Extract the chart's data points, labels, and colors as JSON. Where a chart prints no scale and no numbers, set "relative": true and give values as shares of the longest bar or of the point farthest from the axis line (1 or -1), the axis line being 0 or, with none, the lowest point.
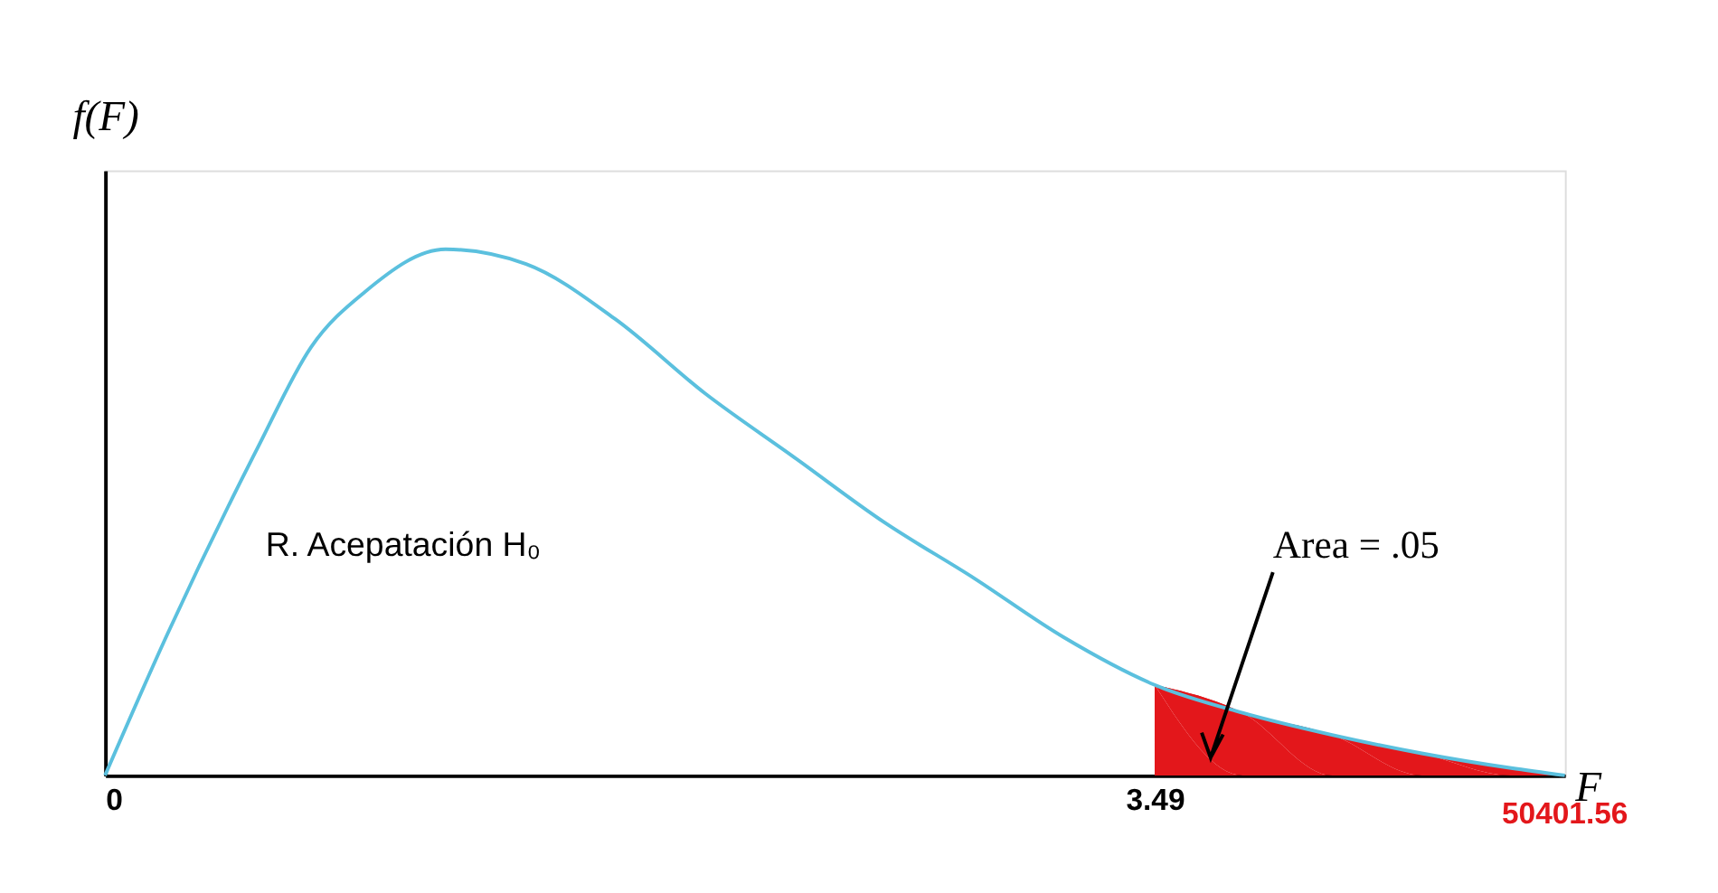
{
  "chart_data": {
    "type": "line",
    "relative": true,
    "xlabel": "F",
    "ylabel": "f(F)",
    "xlim": [
      0,
      4.854
    ],
    "xticks": [
      0,
      3.49
    ],
    "grid": false,
    "series": [
      {
        "color": "#5bc0de",
        "x": [
          0,
          0.2085,
          0.506,
          0.685,
          0.864,
          1.132,
          1.4,
          1.697,
          1.995,
          2.293,
          2.591,
          2.889,
          3.186,
          3.49,
          3.782,
          4.08,
          4.378,
          4.675,
          4.854
        ],
        "values": [
          0,
          0.27,
          0.621,
          0.814,
          0.919,
          1.0,
          0.972,
          0.867,
          0.726,
          0.604,
          0.481,
          0.375,
          0.263,
          0.172,
          0.119,
          0.077,
          0.042,
          0.014,
          0
        ]
      },
      {
        "type": "area",
        "color": "#e3171b",
        "x": [
          3.49,
          3.782,
          4.08,
          4.378,
          4.675,
          4.854
        ],
        "values": [
          0.172,
          0.119,
          0.077,
          0.042,
          0.014,
          0
        ]
      }
    ],
    "annotations": [
      "R. Acepatación H₀",
      "Area = .05",
      {
        "text": "50401.56",
        "x": 4.854,
        "y": 0
      }
    ]
  }
}
